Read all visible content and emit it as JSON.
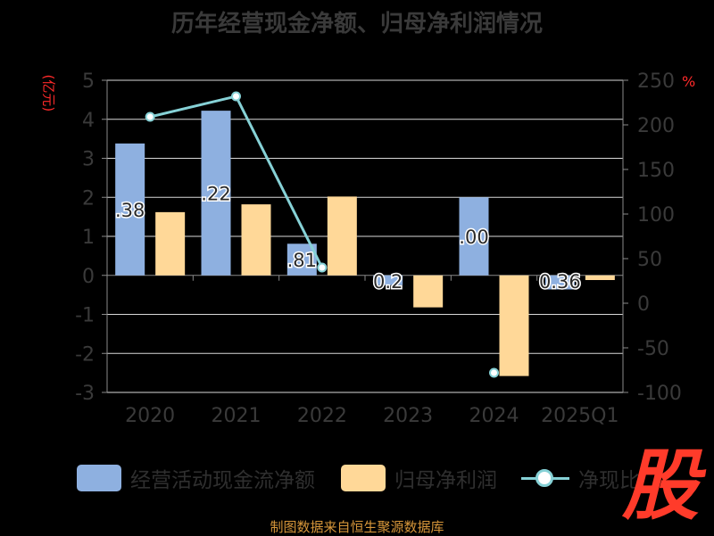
{
  "chart_data": {
    "type": "bar",
    "title": "历年经营现金净额、归母净利润情况",
    "categories": [
      "2020",
      "2021",
      "2022",
      "2023",
      "2024",
      "2025Q1"
    ],
    "y_left": {
      "unit": "(亿元)",
      "min": -3,
      "max": 5,
      "ticks": [
        5,
        4,
        3,
        2,
        1,
        0,
        -1,
        -2,
        -3
      ]
    },
    "y_right": {
      "unit": "%",
      "min": -100,
      "max": 250,
      "ticks": [
        250,
        200,
        150,
        100,
        50,
        0,
        -50,
        -100
      ]
    },
    "grid": true,
    "legend_position": "bottom",
    "series": [
      {
        "name": "经营活动现金流净额",
        "type": "bar",
        "axis": "left",
        "color": "#8eb0e0",
        "values": [
          3.38,
          4.22,
          0.81,
          -0.25,
          2.0,
          -0.36
        ],
        "labels": [
          ".38",
          ".22",
          ".81",
          "0.2",
          ".00",
          "0.36"
        ]
      },
      {
        "name": "归母净利润",
        "type": "bar",
        "axis": "left",
        "color": "#ffd898",
        "values": [
          1.62,
          1.82,
          2.02,
          -0.82,
          -2.58,
          -0.12
        ]
      },
      {
        "name": "净现比",
        "type": "line",
        "axis": "right",
        "color": "#86d1d6",
        "values": [
          209,
          232,
          40,
          null,
          -78,
          null
        ]
      }
    ]
  },
  "legend": {
    "items": [
      "经营活动现金流净额",
      "归母净利润",
      "净现比"
    ]
  },
  "source": "制图数据来自恒生聚源数据库",
  "logo_text": "股"
}
